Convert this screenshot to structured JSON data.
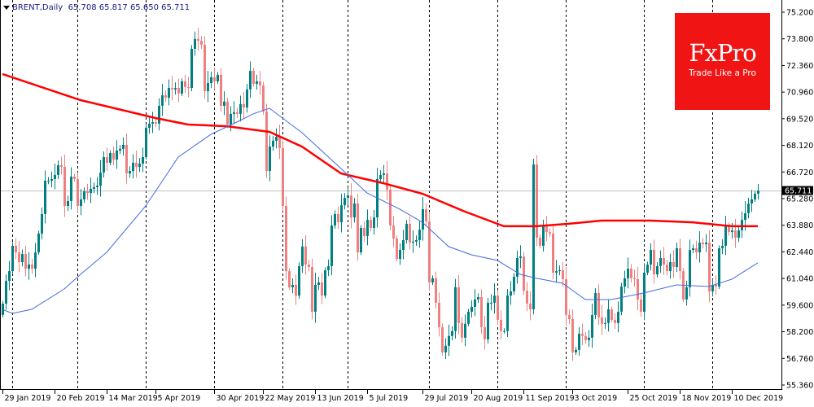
{
  "header": {
    "symbol": "BRENT,Daily",
    "open": "65.708",
    "high": "65.817",
    "low": "65.650",
    "close": "65.711"
  },
  "logo": {
    "brand": "FxPro",
    "tagline": "Trade Like a Pro"
  },
  "colors": {
    "bull": "#008080",
    "bear": "#f08080",
    "ma_slow": "#ff0000",
    "ma_fast": "#4169e1",
    "price_line": "#c0c0c0"
  },
  "chart_data": {
    "type": "candlestick",
    "title": "BRENT,Daily",
    "ylim": [
      55.36,
      75.2
    ],
    "y_ticks": [
      "75.200",
      "73.800",
      "72.360",
      "70.960",
      "69.520",
      "68.120",
      "66.720",
      "65.280",
      "63.880",
      "62.440",
      "61.040",
      "59.600",
      "58.200",
      "56.760",
      "55.360"
    ],
    "x_ticks": [
      {
        "label": "29 Jan 2019",
        "index": 0
      },
      {
        "label": "20 Feb 2019",
        "index": 16
      },
      {
        "label": "14 Mar 2019",
        "index": 32
      },
      {
        "label": "5 Apr 2019",
        "index": 47
      },
      {
        "label": "30 Apr 2019",
        "index": 65
      },
      {
        "label": "22 May 2019",
        "index": 80
      },
      {
        "label": "13 Jun 2019",
        "index": 96
      },
      {
        "label": "5 Jul 2019",
        "index": 112
      },
      {
        "label": "29 Jul 2019",
        "index": 129
      },
      {
        "label": "20 Aug 2019",
        "index": 144
      },
      {
        "label": "11 Sep 2019",
        "index": 160
      },
      {
        "label": "3 Oct 2019",
        "index": 175
      },
      {
        "label": "25 Oct 2019",
        "index": 192
      },
      {
        "label": "18 Nov 2019",
        "index": 208
      },
      {
        "label": "10 Dec 2019",
        "index": 224
      }
    ],
    "grid_indices": [
      3,
      23,
      44,
      65,
      86,
      106,
      131,
      152,
      173,
      197,
      218
    ],
    "current_price": "65.711",
    "closes": [
      59.69,
      60.9,
      61.42,
      62.77,
      62.42,
      61.9,
      62.33,
      61.55,
      61.77,
      61.55,
      62.42,
      63.42,
      64.46,
      66.23,
      66.23,
      66.32,
      66.54,
      67.06,
      66.97,
      64.89,
      65.15,
      66.45,
      66.32,
      64.89,
      65.24,
      65.67,
      65.58,
      65.8,
      65.89,
      65.97,
      66.67,
      67.49,
      67.19,
      67.71,
      67.36,
      67.84,
      67.93,
      68.14,
      66.62,
      66.75,
      67.19,
      66.97,
      67.14,
      67.49,
      69.05,
      69.27,
      69.35,
      69.27,
      70.22,
      70.78,
      70.65,
      71.17,
      71.09,
      71.17,
      70.87,
      71.52,
      71.22,
      71.17,
      73.25,
      73.77,
      73.68,
      73.47,
      71.0,
      71.43,
      71.74,
      71.52,
      71.87,
      70.22,
      70.44,
      69.22,
      69.79,
      69.87,
      69.79,
      70.31,
      70.13,
      71.09,
      72.08,
      71.39,
      71.52,
      71.3,
      69.92,
      66.75,
      68.05,
      68.36,
      68.57,
      67.97,
      64.89,
      61.42,
      60.56,
      60.69,
      60.12,
      61.69,
      62.73,
      61.77,
      61.64,
      59.26,
      60.69,
      60.82,
      60.12,
      61.47,
      61.69,
      63.85,
      64.46,
      64.02,
      64.93,
      65.32,
      65.45,
      64.28,
      65.02,
      62.42,
      63.72,
      63.29,
      64.15,
      63.72,
      64.28,
      66.32,
      66.54,
      66.62,
      65.76,
      63.85,
      63.16,
      62.07,
      62.55,
      63.07,
      63.94,
      62.94,
      62.99,
      63.07,
      63.63,
      64.72,
      64.07,
      60.82,
      61.04,
      59.74,
      58.44,
      57.1,
      57.45,
      57.97,
      58.23,
      60.56,
      58.66,
      57.88,
      58.62,
      59.26,
      59.52,
      59.91,
      60.04,
      58.44,
      57.79,
      59.74,
      59.74,
      60.12,
      58.83,
      58.23,
      58.23,
      60.12,
      60.34,
      61.12,
      62.12,
      62.2,
      60.38,
      59.69,
      59.39,
      67.1,
      63.2,
      62.77,
      63.81,
      63.5,
      63.42,
      61.34,
      61.42,
      61.47,
      60.99,
      59.09,
      58.87,
      57.1,
      57.23,
      58.09,
      57.97,
      57.75,
      57.88,
      59.09,
      60.26,
      58.96,
      58.62,
      58.66,
      59.39,
      58.83,
      58.66,
      59.26,
      60.6,
      61.04,
      61.55,
      61.04,
      60.99,
      59.91,
      59.26,
      61.34,
      61.77,
      62.55,
      61.25,
      61.69,
      62.12,
      61.77,
      61.42,
      61.9,
      61.64,
      62.64,
      61.42,
      59.91,
      60.56,
      62.55,
      62.64,
      62.42,
      62.94,
      62.85,
      62.94,
      60.34,
      60.69,
      60.6,
      62.64,
      62.77,
      63.81,
      63.5,
      63.59,
      63.2,
      63.59,
      64.15,
      64.5,
      65.02,
      65.24,
      65.54,
      65.71
    ],
    "series": [
      {
        "name": "MA slow",
        "color": "#ff0000",
        "points": [
          [
            0,
            71.91
          ],
          [
            24,
            70.52
          ],
          [
            47,
            69.57
          ],
          [
            57,
            69.22
          ],
          [
            69,
            69.13
          ],
          [
            82,
            68.83
          ],
          [
            92,
            68.05
          ],
          [
            104,
            66.62
          ],
          [
            117,
            66.1
          ],
          [
            129,
            65.54
          ],
          [
            142,
            64.59
          ],
          [
            154,
            63.81
          ],
          [
            164,
            63.81
          ],
          [
            174,
            63.94
          ],
          [
            184,
            64.11
          ],
          [
            199,
            64.11
          ],
          [
            212,
            64.02
          ],
          [
            224,
            63.81
          ],
          [
            232,
            63.81
          ]
        ]
      },
      {
        "name": "MA fast",
        "color": "#4169e1",
        "points": [
          [
            0,
            59.39
          ],
          [
            3,
            59.17
          ],
          [
            9,
            59.39
          ],
          [
            19,
            60.47
          ],
          [
            24,
            61.25
          ],
          [
            32,
            62.42
          ],
          [
            44,
            64.89
          ],
          [
            54,
            67.49
          ],
          [
            64,
            68.7
          ],
          [
            72,
            69.35
          ],
          [
            77,
            69.79
          ],
          [
            82,
            70.09
          ],
          [
            92,
            68.79
          ],
          [
            104,
            66.88
          ],
          [
            112,
            65.58
          ],
          [
            122,
            64.72
          ],
          [
            129,
            64.02
          ],
          [
            137,
            62.73
          ],
          [
            144,
            62.29
          ],
          [
            152,
            61.99
          ],
          [
            159,
            61.25
          ],
          [
            164,
            61.04
          ],
          [
            172,
            60.78
          ],
          [
            179,
            59.91
          ],
          [
            187,
            59.91
          ],
          [
            197,
            60.26
          ],
          [
            207,
            60.69
          ],
          [
            217,
            60.6
          ],
          [
            224,
            60.99
          ],
          [
            232,
            61.86
          ]
        ]
      }
    ],
    "grid": true
  }
}
